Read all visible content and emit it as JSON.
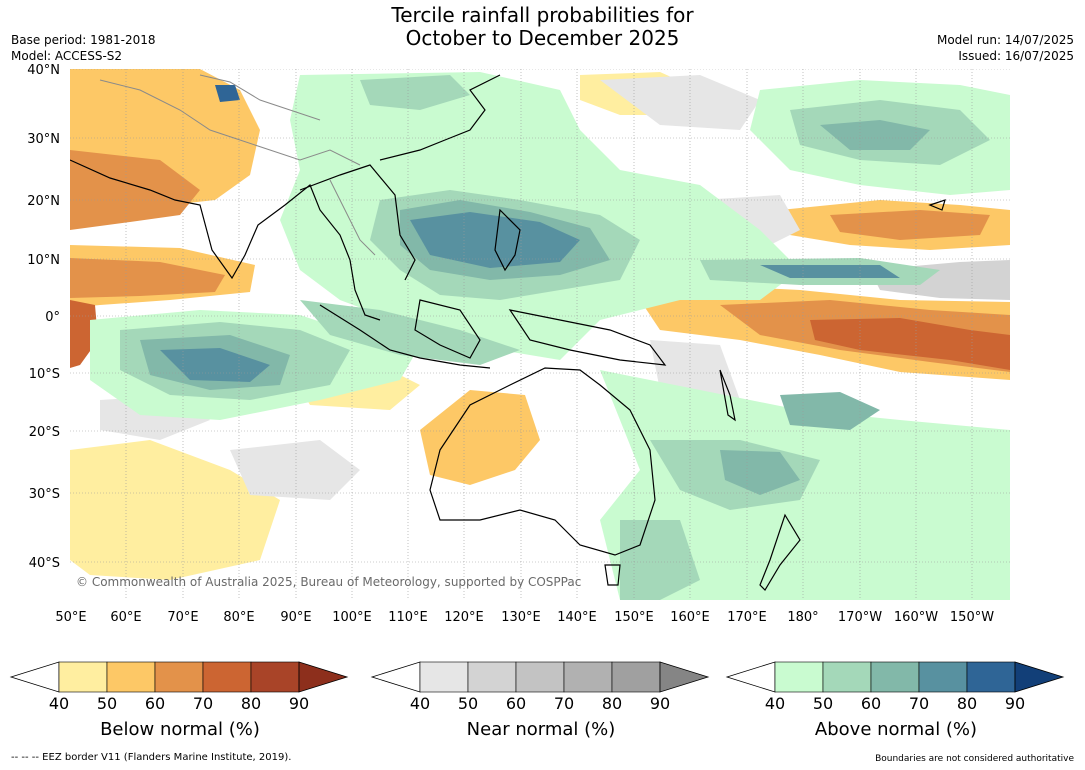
{
  "header": {
    "title_line1": "Tercile rainfall probabilities for",
    "title_line2": "October to December 2025",
    "base_period": "Base period: 1981-2018",
    "model": "Model: ACCESS-S2",
    "model_run": "Model run: 14/07/2025",
    "issued": "Issued: 16/07/2025"
  },
  "map": {
    "lat_labels": [
      "40°N",
      "30°N",
      "20°N",
      "10°N",
      "0°",
      "10°S",
      "20°S",
      "30°S",
      "40°S"
    ],
    "lon_labels": [
      "50°E",
      "60°E",
      "70°E",
      "80°E",
      "90°E",
      "100°E",
      "110°E",
      "120°E",
      "130°E",
      "140°E",
      "150°E",
      "160°E",
      "170°E",
      "180°",
      "170°W",
      "160°W",
      "150°W"
    ],
    "copyright": "© Commonwealth of Australia 2025, Bureau of Meteorology, supported by COSPPac"
  },
  "colorbars": [
    {
      "title": "Below normal (%)",
      "ticks": [
        "40",
        "50",
        "60",
        "70",
        "80",
        "90"
      ],
      "colors": [
        "#ffeea0",
        "#fdc866",
        "#e3924a",
        "#cc6532",
        "#a94428",
        "#8d2f1c"
      ]
    },
    {
      "title": "Near normal (%)",
      "ticks": [
        "40",
        "50",
        "60",
        "70",
        "80",
        "90"
      ],
      "colors": [
        "#e6e6e6",
        "#d3d3d3",
        "#c3c3c3",
        "#b1b1b1",
        "#a0a0a0",
        "#858585"
      ]
    },
    {
      "title": "Above normal (%)",
      "ticks": [
        "40",
        "50",
        "60",
        "70",
        "80",
        "90"
      ],
      "colors": [
        "#c9fbd0",
        "#a4d8b9",
        "#82b8a9",
        "#5891a0",
        "#2f6596",
        "#123f78"
      ]
    }
  ],
  "footer": {
    "eez_legend": "--  --  -- EEZ border V11 (Flanders Marine Institute, 2019).",
    "disclaimer": "Boundaries are not considered authoritative"
  }
}
